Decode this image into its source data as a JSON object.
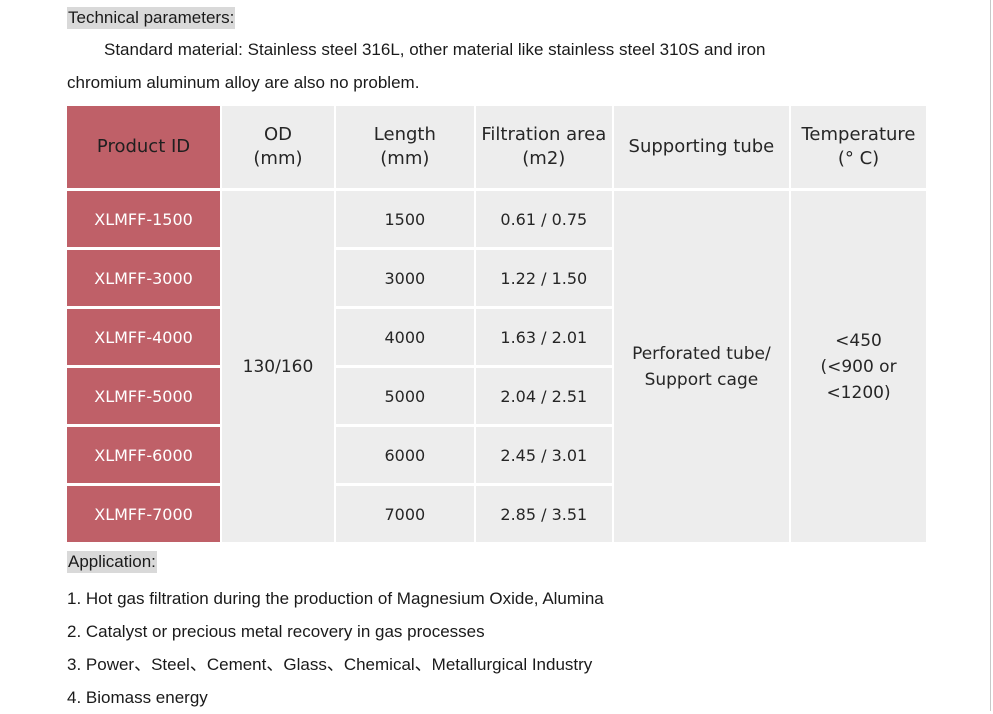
{
  "technical": {
    "title": "Technical parameters:",
    "material_line1": "Standard material: Stainless steel 316L, other material like stainless steel 310S and iron",
    "material_line2": "chromium aluminum alloy are also no problem."
  },
  "table": {
    "headers": {
      "product_id": "Product ID",
      "od": "OD",
      "od_unit": "(mm)",
      "length": "Length",
      "length_unit": "(mm)",
      "filtration": "Filtration area",
      "filtration_unit": "(m2)",
      "support": "Supporting tube",
      "temperature": "Temperature",
      "temperature_unit": "(° C)"
    },
    "rows": [
      {
        "id": "XLMFF-1500",
        "length": "1500",
        "area": "0.61 / 0.75"
      },
      {
        "id": "XLMFF-3000",
        "length": "3000",
        "area": "1.22 / 1.50"
      },
      {
        "id": "XLMFF-4000",
        "length": "4000",
        "area": "1.63 / 2.01"
      },
      {
        "id": "XLMFF-5000",
        "length": "5000",
        "area": "2.04 / 2.51"
      },
      {
        "id": "XLMFF-6000",
        "length": "6000",
        "area": "2.45 / 3.01"
      },
      {
        "id": "XLMFF-7000",
        "length": "7000",
        "area": "2.85 / 3.51"
      }
    ],
    "od_value": "130/160",
    "support_line1": "Perforated tube/",
    "support_line2": "Support cage",
    "temp_line1": "<450",
    "temp_line2": "(<900 or <1200)"
  },
  "application": {
    "title": "Application:",
    "items": [
      "1. Hot gas filtration during the production of Magnesium Oxide, Alumina",
      "2. Catalyst or precious metal recovery in gas processes",
      "3. Power、Steel、Cement、Glass、Chemical、Metallurgical Industry",
      "4. Biomass energy"
    ]
  }
}
